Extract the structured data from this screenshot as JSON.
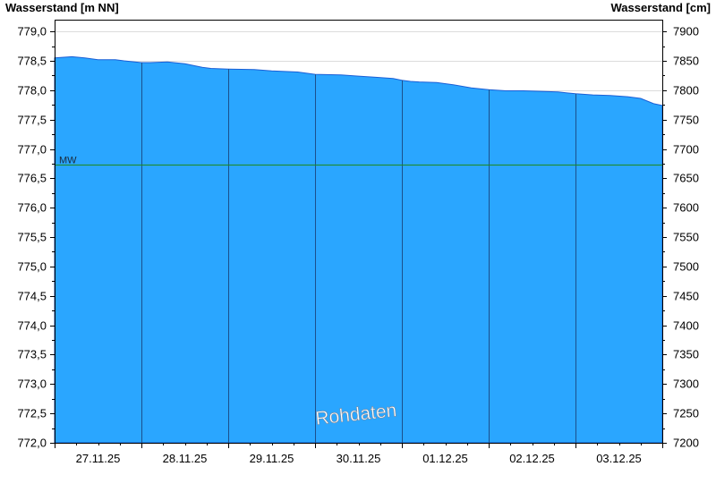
{
  "chart_data": {
    "type": "area",
    "title": "",
    "y_left_label": "Wasserstand [m NN]",
    "y_right_label": "Wasserstand [cm]",
    "ylim_left": [
      772.0,
      779.2
    ],
    "ylim_right": [
      7200,
      7920
    ],
    "left_ticks": [
      "772,0",
      "772,5",
      "773,0",
      "773,5",
      "774,0",
      "774,5",
      "775,0",
      "775,5",
      "776,0",
      "776,5",
      "777,0",
      "777,5",
      "778,0",
      "778,5",
      "779,0"
    ],
    "left_tick_values": [
      772.0,
      772.5,
      773.0,
      773.5,
      774.0,
      774.5,
      775.0,
      775.5,
      776.0,
      776.5,
      777.0,
      777.5,
      778.0,
      778.5,
      779.0
    ],
    "right_ticks": [
      "7200",
      "7250",
      "7300",
      "7350",
      "7400",
      "7450",
      "7500",
      "7550",
      "7600",
      "7650",
      "7700",
      "7750",
      "7800",
      "7850",
      "7900"
    ],
    "right_tick_values": [
      7200,
      7250,
      7300,
      7350,
      7400,
      7450,
      7500,
      7550,
      7600,
      7650,
      7700,
      7750,
      7800,
      7850,
      7900
    ],
    "x_range_days": [
      0,
      7
    ],
    "day_labels": [
      "27.11.25",
      "28.11.25",
      "29.11.25",
      "30.11.25",
      "01.12.25",
      "02.12.25",
      "03.12.25"
    ],
    "series": [
      {
        "x": [
          0.0,
          0.2,
          0.35,
          0.5,
          0.7,
          0.8,
          1.0,
          1.1,
          1.3,
          1.5,
          1.6,
          1.7,
          1.8,
          2.0,
          2.3,
          2.5,
          2.8,
          3.0,
          3.3,
          3.5,
          3.7,
          3.9,
          4.0,
          4.1,
          4.2,
          4.4,
          4.6,
          4.8,
          5.0,
          5.2,
          5.4,
          5.6,
          5.8,
          6.0,
          6.2,
          6.4,
          6.6,
          6.75,
          6.9,
          7.0
        ],
        "y": [
          778.55,
          778.57,
          778.55,
          778.52,
          778.52,
          778.5,
          778.47,
          778.47,
          778.48,
          778.45,
          778.42,
          778.39,
          778.37,
          778.36,
          778.35,
          778.33,
          778.31,
          778.27,
          778.26,
          778.24,
          778.22,
          778.2,
          778.17,
          778.15,
          778.14,
          778.13,
          778.09,
          778.04,
          778.01,
          777.99,
          777.99,
          777.98,
          777.97,
          777.94,
          777.92,
          777.91,
          777.89,
          777.86,
          777.77,
          777.74
        ]
      }
    ],
    "reference_line": {
      "label": "MW",
      "value": 776.74
    },
    "annotation": "Rohdaten",
    "grid": true,
    "fill_color": "#2aa6ff",
    "ref_line_color": "#1f8a1f"
  }
}
